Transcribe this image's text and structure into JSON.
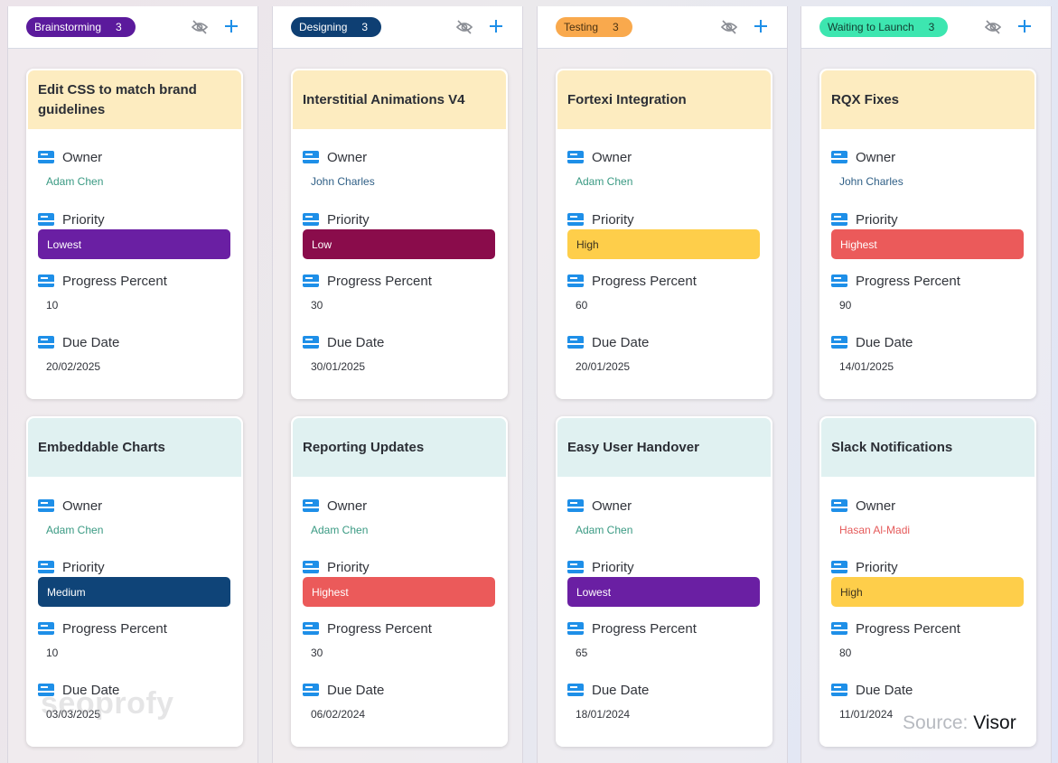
{
  "colors": {
    "owner_green": "#3a9a83",
    "owner_blue": "#2f5f86",
    "owner_red": "#e55a5a",
    "accent_blue": "#1e8fe8"
  },
  "columns": [
    {
      "status": "Brainstorming",
      "count": "3",
      "pill_bg": "#5b1a9c",
      "pill_fg": "#ffffff",
      "cards": [
        {
          "title": "Edit CSS to match brand guidelines",
          "head_bg": "#fdecc0",
          "owner_label": "Owner",
          "owner": "Adam Chen",
          "owner_color": "#3a9a83",
          "priority_label": "Priority",
          "priority": "Lowest",
          "priority_bg": "#6a1fa3",
          "priority_fg": "#ffffff",
          "progress_label": "Progress Percent",
          "progress": "10",
          "due_label": "Due Date",
          "due": "20/02/2025"
        },
        {
          "title": "Embeddable Charts",
          "head_bg": "#e0f1f1",
          "owner_label": "Owner",
          "owner": "Adam Chen",
          "owner_color": "#3a9a83",
          "priority_label": "Priority",
          "priority": "Medium",
          "priority_bg": "#0f4478",
          "priority_fg": "#ffffff",
          "progress_label": "Progress Percent",
          "progress": "10",
          "due_label": "Due Date",
          "due": "03/03/2025"
        }
      ]
    },
    {
      "status": "Designing",
      "count": "3",
      "pill_bg": "#0e3f73",
      "pill_fg": "#ffffff",
      "cards": [
        {
          "title": "Interstitial Animations V4",
          "head_bg": "#fdecc0",
          "owner_label": "Owner",
          "owner": "John Charles",
          "owner_color": "#2f5f86",
          "priority_label": "Priority",
          "priority": "Low",
          "priority_bg": "#8a0c4b",
          "priority_fg": "#ffffff",
          "progress_label": "Progress Percent",
          "progress": "30",
          "due_label": "Due Date",
          "due": "30/01/2025"
        },
        {
          "title": "Reporting Updates",
          "head_bg": "#e0f1f1",
          "owner_label": "Owner",
          "owner": "Adam Chen",
          "owner_color": "#3a9a83",
          "priority_label": "Priority",
          "priority": "Highest",
          "priority_bg": "#eb5a5a",
          "priority_fg": "#ffffff",
          "progress_label": "Progress Percent",
          "progress": "30",
          "due_label": "Due Date",
          "due": "06/02/2024"
        }
      ]
    },
    {
      "status": "Testing",
      "count": "3",
      "pill_bg": "#f9a94d",
      "pill_fg": "#4a3212",
      "cards": [
        {
          "title": "Fortexi Integration",
          "head_bg": "#fdecc0",
          "owner_label": "Owner",
          "owner": "Adam Chen",
          "owner_color": "#3a9a83",
          "priority_label": "Priority",
          "priority": "High",
          "priority_bg": "#fece4a",
          "priority_fg": "#3b3220",
          "progress_label": "Progress Percent",
          "progress": "60",
          "due_label": "Due Date",
          "due": "20/01/2025"
        },
        {
          "title": "Easy User Handover",
          "head_bg": "#e0f1f1",
          "owner_label": "Owner",
          "owner": "Adam Chen",
          "owner_color": "#3a9a83",
          "priority_label": "Priority",
          "priority": "Lowest",
          "priority_bg": "#6a1fa3",
          "priority_fg": "#ffffff",
          "progress_label": "Progress Percent",
          "progress": "65",
          "due_label": "Due Date",
          "due": "18/01/2024"
        }
      ]
    },
    {
      "status": "Waiting to Launch",
      "count": "3",
      "pill_bg": "#3de6b0",
      "pill_fg": "#123c30",
      "cards": [
        {
          "title": "RQX Fixes",
          "head_bg": "#fdecc0",
          "owner_label": "Owner",
          "owner": "John Charles",
          "owner_color": "#2f5f86",
          "priority_label": "Priority",
          "priority": "Highest",
          "priority_bg": "#eb5a5a",
          "priority_fg": "#ffffff",
          "progress_label": "Progress Percent",
          "progress": "90",
          "due_label": "Due Date",
          "due": "14/01/2025"
        },
        {
          "title": "Slack Notifications",
          "head_bg": "#e0f1f1",
          "owner_label": "Owner",
          "owner": "Hasan Al-Madi",
          "owner_color": "#e55a5a",
          "priority_label": "Priority",
          "priority": "High",
          "priority_bg": "#fece4a",
          "priority_fg": "#3b3220",
          "progress_label": "Progress Percent",
          "progress": "80",
          "due_label": "Due Date",
          "due": "11/01/2024"
        }
      ]
    }
  ],
  "watermark": {
    "text": "seoprofy"
  },
  "source": {
    "label": "Source:",
    "name": "Visor"
  }
}
